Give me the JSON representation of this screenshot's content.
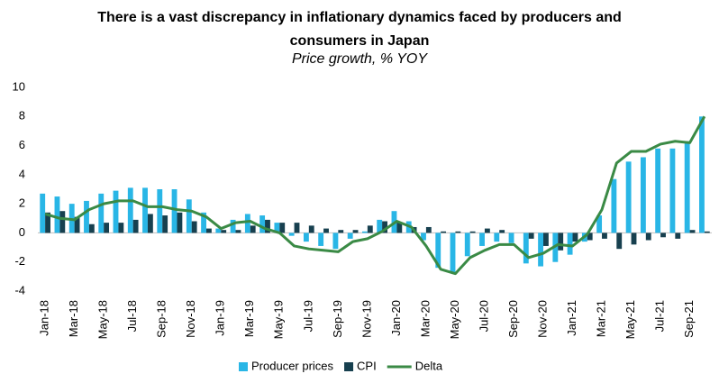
{
  "chart_data": {
    "type": "bar",
    "title": "There is a vast discrepancy in inflationary dynamics faced by producers and consumers in Japan",
    "subtitle": "Price growth, % YOY",
    "categories": [
      "Jan-18",
      null,
      "Mar-18",
      null,
      "May-18",
      null,
      "Jul-18",
      null,
      "Sep-18",
      null,
      "Nov-18",
      null,
      "Jan-19",
      null,
      "Mar-19",
      null,
      "May-19",
      null,
      "Jul-19",
      null,
      "Sep-19",
      null,
      "Nov-19",
      null,
      "Jan-20",
      null,
      "Mar-20",
      null,
      "May-20",
      null,
      "Jul-20",
      null,
      "Sep-20",
      null,
      "Nov-20",
      null,
      "Jan-21",
      null,
      "Mar-21",
      null,
      "May-21",
      null,
      "Jul-21",
      null,
      "Sep-21",
      null
    ],
    "series": [
      {
        "name": "Producer prices",
        "type": "bar",
        "color": "#29b6e6",
        "values": [
          2.7,
          2.5,
          2.0,
          2.2,
          2.7,
          2.9,
          3.1,
          3.1,
          3.0,
          3.0,
          2.3,
          1.4,
          0.3,
          0.9,
          1.3,
          1.2,
          0.7,
          -0.2,
          -0.6,
          -0.9,
          -1.1,
          -0.4,
          0.1,
          0.9,
          1.5,
          0.8,
          -0.5,
          -2.4,
          -2.7,
          -1.6,
          -0.9,
          -0.6,
          -0.7,
          -2.1,
          -2.3,
          -2.0,
          -1.5,
          -0.6,
          1.2,
          3.7,
          4.9,
          5.2,
          5.8,
          5.8,
          6.3,
          8.0
        ]
      },
      {
        "name": "CPI",
        "type": "bar",
        "color": "#17404f",
        "values": [
          1.4,
          1.5,
          1.1,
          0.6,
          0.7,
          0.7,
          0.9,
          1.3,
          1.2,
          1.4,
          0.8,
          0.3,
          0.2,
          0.2,
          0.5,
          0.9,
          0.7,
          0.7,
          0.5,
          0.3,
          0.2,
          0.2,
          0.5,
          0.8,
          0.7,
          0.4,
          0.4,
          0.1,
          0.1,
          0.1,
          0.3,
          0.2,
          0.0,
          -0.4,
          -0.9,
          -1.2,
          -0.6,
          -0.5,
          -0.4,
          -1.1,
          -0.8,
          -0.5,
          -0.3,
          -0.4,
          0.2,
          0.1
        ]
      },
      {
        "name": "Delta",
        "type": "line",
        "color": "#3a8a45",
        "values": [
          1.3,
          1.0,
          0.9,
          1.6,
          2.0,
          2.2,
          2.2,
          1.8,
          1.8,
          1.6,
          1.5,
          1.1,
          0.3,
          0.7,
          0.8,
          0.3,
          0.0,
          -0.9,
          -1.1,
          -1.2,
          -1.3,
          -0.6,
          -0.4,
          0.1,
          0.8,
          0.4,
          -0.9,
          -2.5,
          -2.8,
          -1.7,
          -1.2,
          -0.8,
          -0.8,
          -1.7,
          -1.4,
          -0.8,
          -0.9,
          -0.1,
          1.6,
          4.8,
          5.6,
          5.6,
          6.1,
          6.3,
          6.2,
          8.0
        ]
      }
    ],
    "ylim": [
      -4,
      10
    ],
    "yticks": [
      -4,
      -2,
      0,
      2,
      4,
      6,
      8,
      10
    ],
    "grid": false,
    "legend": "bottom"
  }
}
